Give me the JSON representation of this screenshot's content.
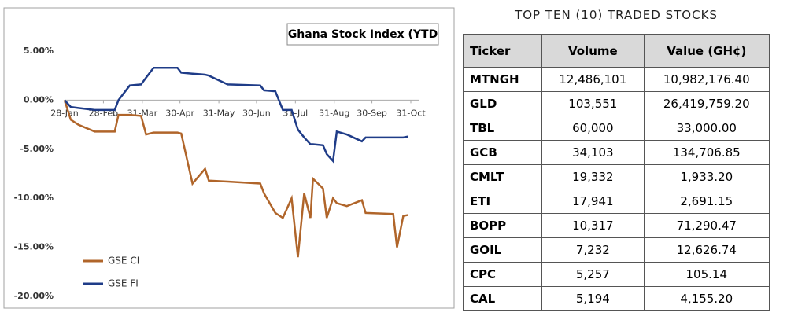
{
  "chart_data": {
    "type": "line",
    "title": "Ghana Stock Index (YTD",
    "x": [
      "28-Jan",
      "2-Feb",
      "8-Feb",
      "21-Feb",
      "9-Mar",
      "12-Mar",
      "21-Mar",
      "30-Mar",
      "3-Apr",
      "9-Apr",
      "28-Apr",
      "1-May",
      "10-May",
      "20-May",
      "23-May",
      "7-Jun",
      "3-Jul",
      "6-Jul",
      "15-Jul",
      "21-Jul",
      "28-Jul",
      "2-Aug",
      "7-Aug",
      "12-Aug",
      "14-Aug",
      "22-Aug",
      "25-Aug",
      "30-Aug",
      "2-Sep",
      "10-Sep",
      "22-Sep",
      "25-Sep",
      "17-Oct",
      "20-Oct",
      "25-Oct",
      "29-Oct"
    ],
    "series": [
      {
        "name": "GSE CI",
        "color": "#b0652a",
        "values": [
          0,
          -2.0,
          -2.5,
          -3.2,
          -3.2,
          -1.5,
          -1.5,
          -1.6,
          -3.5,
          -3.3,
          -3.3,
          -3.4,
          -8.5,
          -7.0,
          -8.2,
          -8.3,
          -8.5,
          -9.5,
          -11.5,
          -12.0,
          -10.0,
          -16.0,
          -9.5,
          -12.0,
          -8.0,
          -9.0,
          -12.0,
          -10.0,
          -10.5,
          -10.8,
          -10.2,
          -11.5,
          -11.6,
          -15.0,
          -11.8,
          -11.7
        ]
      },
      {
        "name": "GSE FI",
        "color": "#1f3c88",
        "values": [
          0,
          -0.7,
          -0.8,
          -1.0,
          -1.0,
          0,
          1.5,
          1.6,
          2.3,
          3.3,
          3.3,
          2.8,
          2.7,
          2.6,
          2.5,
          1.6,
          1.5,
          1.0,
          0.9,
          -1.0,
          -1.0,
          -3.0,
          -3.8,
          -4.5,
          -4.5,
          -4.6,
          -5.5,
          -6.2,
          -3.2,
          -3.5,
          -4.2,
          -3.8,
          -3.8,
          -3.8,
          -3.8,
          -3.7
        ]
      }
    ],
    "xlim": [
      "28-Jan",
      "31-Oct"
    ],
    "xticks": [
      "28-Jan",
      "28-Feb",
      "31-Mar",
      "30-Apr",
      "31-May",
      "30-Jun",
      "31-Jul",
      "31-Aug",
      "30-Sep",
      "31-Oct"
    ],
    "ylim": [
      -20,
      5
    ],
    "yticks": [
      {
        "value": 5,
        "label": "5.00%"
      },
      {
        "value": 0,
        "label": "0.00%"
      },
      {
        "value": -5,
        "label": "-5.00%"
      },
      {
        "value": -10,
        "label": "-10.00%"
      },
      {
        "value": -15,
        "label": "-15.00%"
      },
      {
        "value": -20,
        "label": "-20.00%"
      }
    ],
    "grid": false,
    "legend": "bottom-left"
  },
  "table": {
    "title": "TOP TEN (10) TRADED STOCKS",
    "header": [
      "Ticker",
      "Volume",
      "Value (GH¢)"
    ],
    "rows": [
      [
        "MTNGH",
        "12,486,101",
        "10,982,176.40"
      ],
      [
        "GLD",
        "103,551",
        "26,419,759.20"
      ],
      [
        "TBL",
        "60,000",
        "33,000.00"
      ],
      [
        "GCB",
        "34,103",
        "134,706.85"
      ],
      [
        "CMLT",
        "19,332",
        "1,933.20"
      ],
      [
        "ETI",
        "17,941",
        "2,691.15"
      ],
      [
        "BOPP",
        "10,317",
        "71,290.47"
      ],
      [
        "GOIL",
        "7,232",
        "12,626.74"
      ],
      [
        "CPC",
        "5,257",
        "105.14"
      ],
      [
        "CAL",
        "5,194",
        "4,155.20"
      ]
    ]
  }
}
